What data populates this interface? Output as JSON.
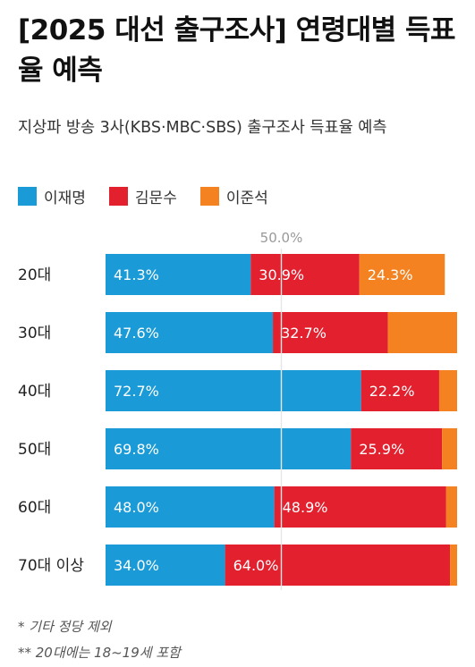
{
  "title": "[2025 대선 출구조사] 연령대별 득표율 예측",
  "subtitle": "지상파 방송 3사(KBS·MBC·SBS) 출구조사 득표율 예측",
  "legend": [
    {
      "name": "이재명",
      "color": "#1a9ad6"
    },
    {
      "name": "김문수",
      "color": "#e2202e"
    },
    {
      "name": "이준석",
      "color": "#f58220"
    }
  ],
  "reference_label": "50.0%",
  "footnotes": [
    "* 기타 정당 제외",
    "** 20대에는 18~19세 포함"
  ],
  "chart_data": {
    "type": "bar",
    "orientation": "horizontal",
    "stacked": true,
    "categories": [
      "20대",
      "30대",
      "40대",
      "50대",
      "60대",
      "70대 이상"
    ],
    "xlim": [
      0,
      100
    ],
    "reference_line": 50.0,
    "series": [
      {
        "name": "이재명",
        "color": "#1a9ad6",
        "values": [
          41.3,
          47.6,
          72.7,
          69.8,
          48.0,
          34.0
        ],
        "labels": [
          "41.3%",
          "47.6%",
          "72.7%",
          "69.8%",
          "48.0%",
          "34.0%"
        ]
      },
      {
        "name": "김문수",
        "color": "#e2202e",
        "values": [
          30.9,
          32.7,
          22.2,
          25.9,
          48.9,
          64.0
        ],
        "labels": [
          "30.9%",
          "32.7%",
          "22.2%",
          "25.9%",
          "48.9%",
          "64.0%"
        ]
      },
      {
        "name": "이준석",
        "color": "#f58220",
        "values": [
          24.3,
          19.7,
          5.1,
          4.3,
          3.1,
          2.0
        ],
        "labels": [
          "24.3%",
          "",
          "",
          "",
          "",
          ""
        ]
      }
    ]
  }
}
